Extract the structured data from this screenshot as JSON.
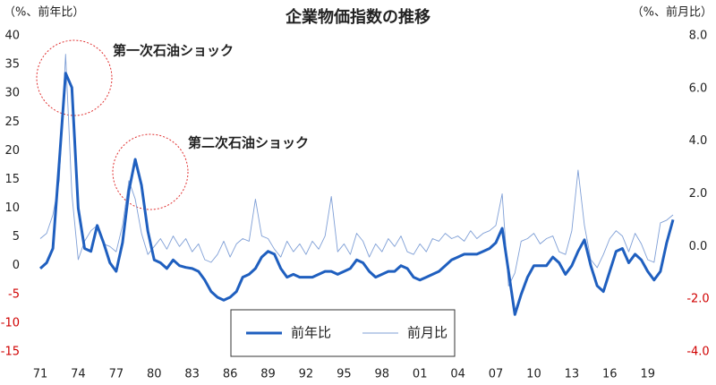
{
  "chart_data": {
    "type": "line",
    "title": "企業物価指数の推移",
    "y_label": "（%、前年比）",
    "y2_label": "（%、前月比）",
    "annotations": [
      "第一次石油ショック",
      "第二次石油ショック"
    ],
    "x": [
      1971,
      1971.5,
      1972,
      1972.5,
      1973,
      1973.5,
      1974,
      1974.5,
      1975,
      1975.5,
      1976,
      1976.5,
      1977,
      1977.5,
      1978,
      1978.5,
      1979,
      1979.5,
      1980,
      1980.5,
      1981,
      1981.5,
      1982,
      1982.5,
      1983,
      1983.5,
      1984,
      1984.5,
      1985,
      1985.5,
      1986,
      1986.5,
      1987,
      1987.5,
      1988,
      1988.5,
      1989,
      1989.5,
      1990,
      1990.5,
      1991,
      1991.5,
      1992,
      1992.5,
      1993,
      1993.5,
      1994,
      1994.5,
      1995,
      1995.5,
      1996,
      1996.5,
      1997,
      1997.5,
      1998,
      1998.5,
      1999,
      1999.5,
      2000,
      2000.5,
      2001,
      2001.5,
      2002,
      2002.5,
      2003,
      2003.5,
      2004,
      2004.5,
      2005,
      2005.5,
      2006,
      2006.5,
      2007,
      2007.5,
      2008,
      2008.5,
      2009,
      2009.5,
      2010,
      2010.5,
      2011,
      2011.5,
      2012,
      2012.5,
      2013,
      2013.5,
      2014,
      2014.5,
      2015,
      2015.5,
      2016,
      2016.5,
      2017,
      2017.5,
      2018,
      2018.5,
      2019,
      2019.5,
      2020,
      2020.5,
      2021
    ],
    "series": [
      {
        "name": "前年比",
        "color": "#1f5fbf",
        "width": 3,
        "values": [
          -0.5,
          0.5,
          3,
          18,
          33.5,
          31,
          10,
          3,
          2.5,
          7,
          4,
          0.5,
          -1,
          4,
          13,
          18.5,
          14,
          6,
          1,
          0.5,
          -0.5,
          1,
          0,
          -0.3,
          -0.5,
          -1,
          -2.5,
          -4.5,
          -5.5,
          -6,
          -5.5,
          -4.5,
          -2,
          -1.5,
          -0.5,
          1.5,
          2.5,
          2,
          -0.5,
          -2,
          -1.5,
          -2,
          -2,
          -2,
          -1.5,
          -1,
          -1,
          -1.5,
          -1,
          -0.5,
          1,
          0.5,
          -1,
          -2,
          -1.5,
          -1,
          -1,
          0,
          -0.5,
          -2,
          -2.5,
          -2,
          -1.5,
          -1,
          0,
          1,
          1.5,
          2,
          2,
          2,
          2.5,
          3,
          4,
          6.5,
          -1,
          -8.5,
          -5,
          -2,
          0,
          0,
          0,
          1.5,
          0.5,
          -1.5,
          0,
          2.5,
          4.5,
          0,
          -3.5,
          -4.5,
          -1,
          2.5,
          3,
          0.5,
          2,
          1,
          -1,
          -2.5,
          -1,
          4,
          8
        ]
      },
      {
        "name": "前月比",
        "color": "#7f9fd6",
        "width": 0.9,
        "axis": "y2",
        "values": [
          0.3,
          0.5,
          1.2,
          2.5,
          7.3,
          2.0,
          -0.5,
          0.2,
          0.6,
          0.8,
          0.1,
          0.0,
          -0.2,
          0.8,
          2.5,
          1.8,
          0.5,
          -0.3,
          0.0,
          0.3,
          -0.1,
          0.4,
          0.0,
          0.3,
          -0.2,
          0.1,
          -0.5,
          -0.6,
          -0.3,
          0.2,
          -0.4,
          0.1,
          0.3,
          0.2,
          1.8,
          0.4,
          0.3,
          -0.1,
          -0.4,
          0.2,
          -0.2,
          0.1,
          -0.3,
          0.2,
          -0.1,
          0.4,
          1.9,
          -0.2,
          0.1,
          -0.3,
          0.5,
          0.2,
          -0.4,
          0.1,
          -0.2,
          0.3,
          0.0,
          0.4,
          -0.2,
          -0.3,
          0.1,
          -0.2,
          0.3,
          0.2,
          0.5,
          0.3,
          0.4,
          0.2,
          0.6,
          0.3,
          0.5,
          0.6,
          0.8,
          2.0,
          -1.5,
          -1.0,
          0.2,
          0.3,
          0.5,
          0.1,
          0.3,
          0.4,
          -0.2,
          -0.3,
          0.6,
          2.9,
          0.8,
          -0.5,
          -0.8,
          -0.3,
          0.3,
          0.6,
          0.4,
          -0.2,
          0.5,
          0.1,
          -0.5,
          -0.6,
          0.9,
          1.0,
          1.2
        ]
      }
    ],
    "xlim": [
      1971,
      2021
    ],
    "xticks": [
      {
        "value": 1971,
        "label": "71"
      },
      {
        "value": 1974,
        "label": "74"
      },
      {
        "value": 1977,
        "label": "77"
      },
      {
        "value": 1980,
        "label": "80"
      },
      {
        "value": 1983,
        "label": "83"
      },
      {
        "value": 1986,
        "label": "86"
      },
      {
        "value": 1989,
        "label": "89"
      },
      {
        "value": 1992,
        "label": "92"
      },
      {
        "value": 1995,
        "label": "95"
      },
      {
        "value": 1998,
        "label": "98"
      },
      {
        "value": 2001,
        "label": "01"
      },
      {
        "value": 2004,
        "label": "04"
      },
      {
        "value": 2007,
        "label": "07"
      },
      {
        "value": 2010,
        "label": "10"
      },
      {
        "value": 2013,
        "label": "13"
      },
      {
        "value": 2016,
        "label": "16"
      },
      {
        "value": 2019,
        "label": "19"
      }
    ],
    "ylim": [
      -15,
      40
    ],
    "yticks": [
      40,
      35,
      30,
      25,
      20,
      15,
      10,
      5,
      0,
      -5,
      -10,
      -15
    ],
    "y2lim": [
      -4,
      8
    ],
    "y2ticks": [
      {
        "value": 8,
        "label": "8.0"
      },
      {
        "value": 6,
        "label": "6.0"
      },
      {
        "value": 4,
        "label": "4.0"
      },
      {
        "value": 2,
        "label": "2.0"
      },
      {
        "value": 0,
        "label": "0.0"
      },
      {
        "value": -2,
        "label": "-2.0"
      },
      {
        "value": -4,
        "label": "-4.0"
      }
    ],
    "negative_tick_color": "#d00000",
    "grid": false
  }
}
